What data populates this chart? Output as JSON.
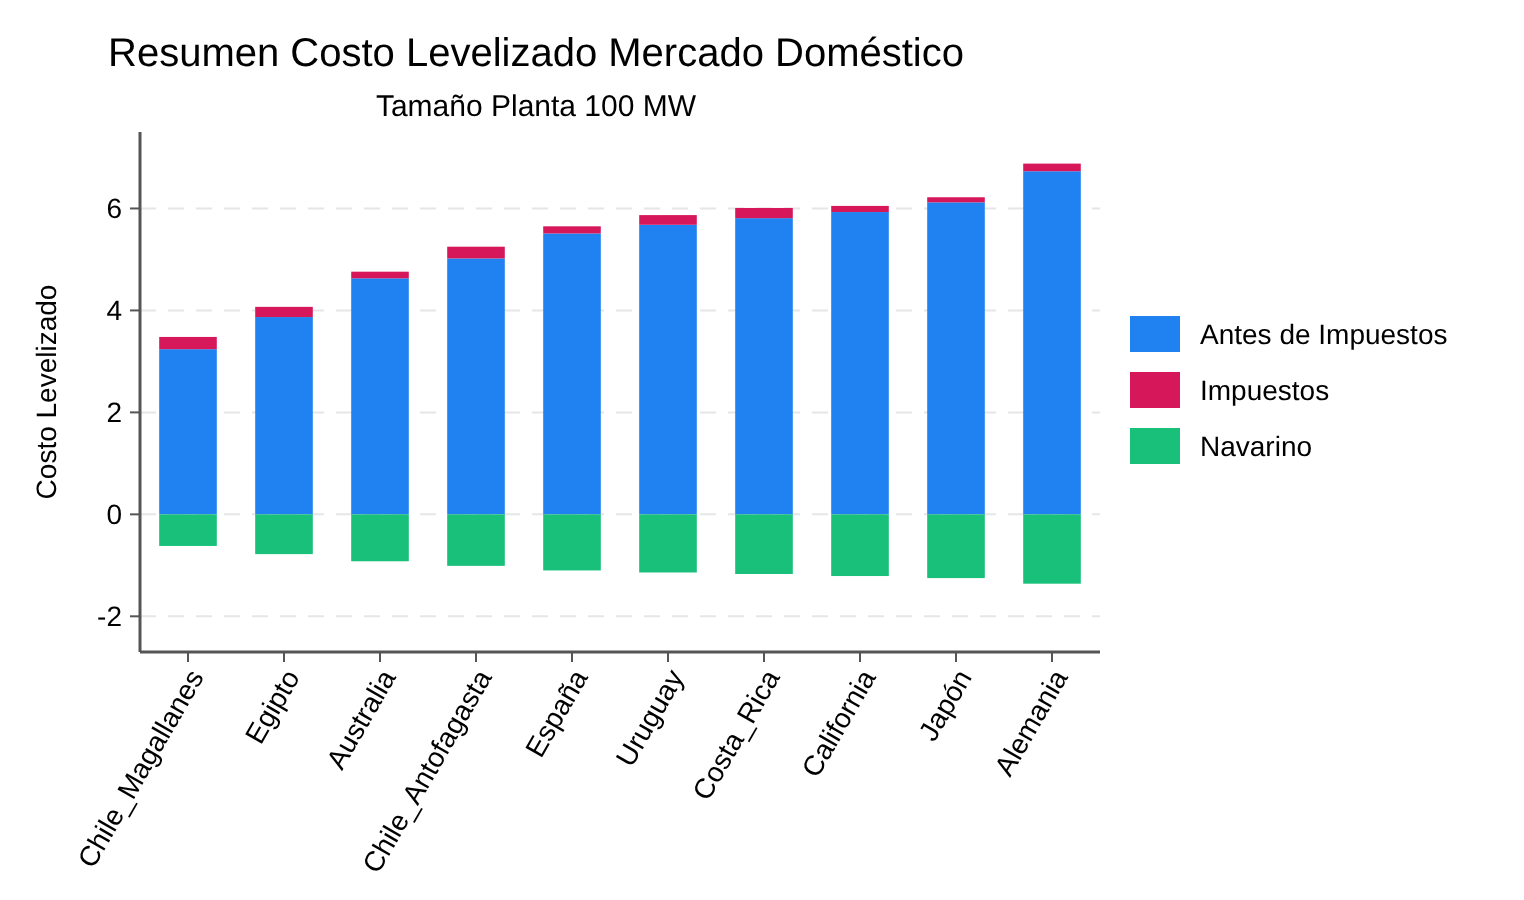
{
  "chart_data": {
    "type": "bar",
    "title": "Resumen Costo Levelizado Mercado Doméstico",
    "subtitle": "Tamaño Planta 100 MW",
    "ylabel": "Costo Levelizado",
    "categories": [
      "Chile_Magallanes",
      "Egipto",
      "Australia",
      "Chile_Antofagasta",
      "España",
      "Uruguay",
      "Costa_Rica",
      "California",
      "Japón",
      "Alemania"
    ],
    "stacked": true,
    "series": [
      {
        "name": "Antes de Impuestos",
        "color": "#1f82f0",
        "values": [
          3.24,
          3.87,
          4.63,
          5.02,
          5.51,
          5.68,
          5.81,
          5.93,
          6.12,
          6.73
        ]
      },
      {
        "name": "Impuestos",
        "color": "#d6185b",
        "values": [
          0.24,
          0.2,
          0.13,
          0.23,
          0.14,
          0.19,
          0.2,
          0.12,
          0.1,
          0.15
        ]
      },
      {
        "name": "Navarino",
        "color": "#18c07a",
        "values": [
          -0.62,
          -0.78,
          -0.92,
          -1.01,
          -1.1,
          -1.14,
          -1.17,
          -1.21,
          -1.25,
          -1.36
        ]
      }
    ],
    "ylim": [
      -2.7,
      7.5
    ],
    "yticks": [
      -2,
      0,
      2,
      4,
      6
    ],
    "grid": "y",
    "legend": "right"
  }
}
